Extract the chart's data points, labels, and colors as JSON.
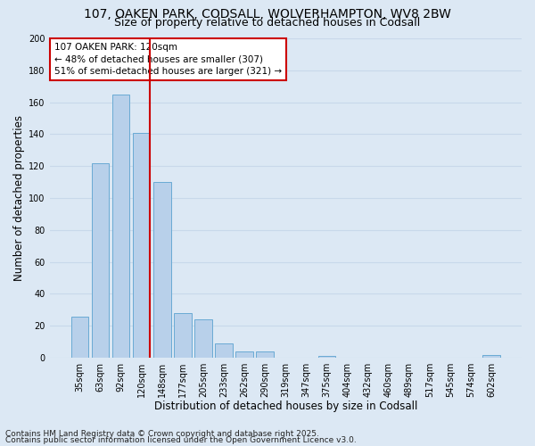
{
  "title": "107, OAKEN PARK, CODSALL, WOLVERHAMPTON, WV8 2BW",
  "subtitle": "Size of property relative to detached houses in Codsall",
  "xlabel": "Distribution of detached houses by size in Codsall",
  "ylabel": "Number of detached properties",
  "bar_labels": [
    "35sqm",
    "63sqm",
    "92sqm",
    "120sqm",
    "148sqm",
    "177sqm",
    "205sqm",
    "233sqm",
    "262sqm",
    "290sqm",
    "319sqm",
    "347sqm",
    "375sqm",
    "404sqm",
    "432sqm",
    "460sqm",
    "489sqm",
    "517sqm",
    "545sqm",
    "574sqm",
    "602sqm"
  ],
  "bar_values": [
    26,
    122,
    165,
    141,
    110,
    28,
    24,
    9,
    4,
    4,
    0,
    0,
    1,
    0,
    0,
    0,
    0,
    0,
    0,
    0,
    2
  ],
  "bar_color": "#b8d0ea",
  "bar_edge_color": "#6aaad4",
  "vline_bar_index": 3,
  "vline_color": "#cc0000",
  "annotation_box_text": "107 OAKEN PARK: 120sqm\n← 48% of detached houses are smaller (307)\n51% of semi-detached houses are larger (321) →",
  "annotation_box_color": "#ffffff",
  "annotation_box_edgecolor": "#cc0000",
  "ylim": [
    0,
    200
  ],
  "yticks": [
    0,
    20,
    40,
    60,
    80,
    100,
    120,
    140,
    160,
    180,
    200
  ],
  "grid_color": "#c8d8ea",
  "background_color": "#dce8f4",
  "footnote1": "Contains HM Land Registry data © Crown copyright and database right 2025.",
  "footnote2": "Contains public sector information licensed under the Open Government Licence v3.0.",
  "title_fontsize": 10,
  "subtitle_fontsize": 9,
  "axis_label_fontsize": 8.5,
  "tick_fontsize": 7,
  "annotation_fontsize": 7.5,
  "footnote_fontsize": 6.5
}
